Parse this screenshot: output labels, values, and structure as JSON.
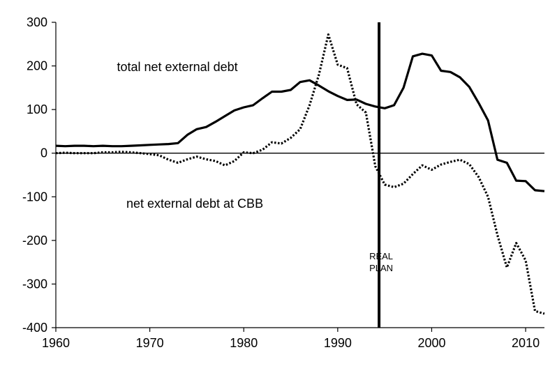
{
  "chart_data": {
    "type": "line",
    "title": "",
    "xlabel": "",
    "ylabel": "",
    "xlim": [
      1960,
      2012
    ],
    "ylim": [
      -400,
      300
    ],
    "x_ticks": [
      1960,
      1970,
      1980,
      1990,
      2000,
      2010
    ],
    "y_ticks": [
      300,
      200,
      100,
      0,
      -100,
      -200,
      -300,
      -400
    ],
    "x_tick_labels": [
      "1960",
      "1970",
      "1980",
      "1990",
      "2000",
      "2010"
    ],
    "y_tick_labels": [
      "300",
      "200",
      "100",
      "0",
      "-100",
      "-200",
      "-300",
      "-400"
    ],
    "grid": false,
    "legend": "none",
    "series": [
      {
        "name": "total net external debt",
        "style": "solid",
        "color": "#000000",
        "x": [
          1960,
          1961,
          1962,
          1963,
          1964,
          1965,
          1966,
          1967,
          1968,
          1969,
          1970,
          1971,
          1972,
          1973,
          1974,
          1975,
          1976,
          1977,
          1978,
          1979,
          1980,
          1981,
          1982,
          1983,
          1984,
          1985,
          1986,
          1987,
          1988,
          1989,
          1990,
          1991,
          1992,
          1993,
          1994,
          1995,
          1996,
          1997,
          1998,
          1999,
          2000,
          2001,
          2002,
          2003,
          2004,
          2005,
          2006,
          2007,
          2008,
          2009,
          2010,
          2011,
          2012
        ],
        "values": [
          17,
          16,
          17,
          17,
          16,
          17,
          16,
          16,
          17,
          18,
          19,
          20,
          21,
          23,
          42,
          55,
          60,
          72,
          85,
          98,
          105,
          110,
          126,
          141,
          141,
          145,
          163,
          167,
          155,
          142,
          131,
          122,
          123,
          113,
          107,
          103,
          110,
          150,
          222,
          228,
          224,
          189,
          186,
          174,
          152,
          115,
          75,
          -15,
          -22,
          -63,
          -64,
          -85,
          -87
        ]
      },
      {
        "name": "net external debt at CBB",
        "style": "dotted",
        "color": "#000000",
        "x": [
          1960,
          1961,
          1962,
          1963,
          1964,
          1965,
          1966,
          1967,
          1968,
          1969,
          1970,
          1971,
          1972,
          1973,
          1974,
          1975,
          1976,
          1977,
          1978,
          1979,
          1980,
          1981,
          1982,
          1983,
          1984,
          1985,
          1986,
          1987,
          1988,
          1989,
          1990,
          1991,
          1992,
          1993,
          1994,
          1995,
          1996,
          1997,
          1998,
          1999,
          2000,
          2001,
          2002,
          2003,
          2004,
          2005,
          2006,
          2007,
          2008,
          2009,
          2010,
          2011,
          2012
        ],
        "values": [
          0,
          1,
          0,
          0,
          0,
          2,
          2,
          3,
          2,
          0,
          -2,
          -5,
          -15,
          -22,
          -14,
          -8,
          -14,
          -18,
          -28,
          -18,
          2,
          0,
          8,
          25,
          22,
          35,
          55,
          110,
          180,
          272,
          203,
          195,
          112,
          93,
          -30,
          -72,
          -78,
          -70,
          -48,
          -28,
          -38,
          -26,
          -20,
          -15,
          -25,
          -55,
          -100,
          -188,
          -262,
          -206,
          -246,
          -362,
          -368
        ]
      }
    ],
    "annotations": [
      {
        "text": "total net external debt",
        "x": 1966.5,
        "y": 188
      },
      {
        "text": "net external debt at CBB",
        "x": 1967.5,
        "y": -125
      }
    ],
    "vertical_marker": {
      "x": 1994.4,
      "label_line1": "REAL",
      "label_line2": "PLAN"
    },
    "zero_line": true
  }
}
